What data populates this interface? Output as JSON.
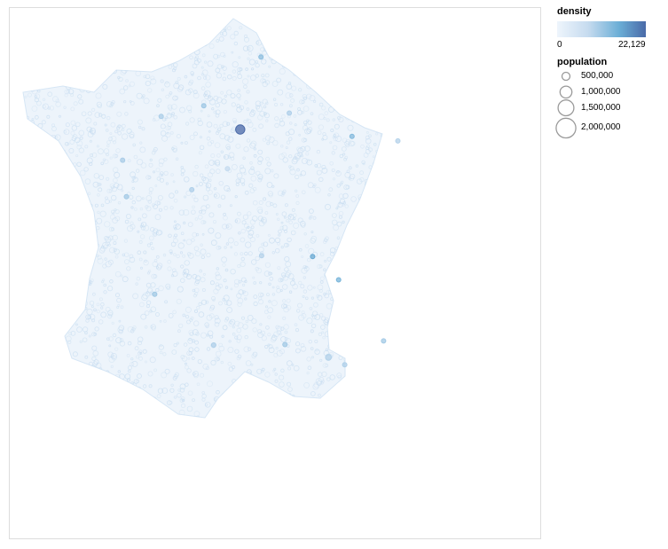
{
  "chart_data": {
    "type": "scatter",
    "title": "",
    "xlabel": "",
    "ylabel": "",
    "grid": false,
    "legend_placement": "right",
    "density_legend": {
      "title": "density",
      "min": 0,
      "max": 22129,
      "min_label": "0",
      "max_label": "22,129",
      "color_scale": [
        "#eef5fc",
        "#c6dbef",
        "#6baed6",
        "#4a6aa8"
      ]
    },
    "population_legend": {
      "title": "population",
      "entries": [
        {
          "value": 500000,
          "label": "500,000"
        },
        {
          "value": 1000000,
          "label": "1,000,000"
        },
        {
          "value": 1500000,
          "label": "1,500,000"
        },
        {
          "value": 2000000,
          "label": "2,000,000"
        }
      ]
    },
    "highlighted_points": [
      {
        "lon": 2.35,
        "lat": 48.86,
        "density": 22129,
        "population": 2200000
      },
      {
        "lon": 4.83,
        "lat": 45.76,
        "density": 10500,
        "population": 500000
      },
      {
        "lon": 5.37,
        "lat": 43.3,
        "density": 3600,
        "population": 860000
      },
      {
        "lon": 1.44,
        "lat": 43.6,
        "density": 3900,
        "population": 470000
      },
      {
        "lon": -0.58,
        "lat": 44.84,
        "density": 5000,
        "population": 250000
      },
      {
        "lon": 3.06,
        "lat": 50.63,
        "density": 6600,
        "population": 230000
      },
      {
        "lon": 7.26,
        "lat": 43.7,
        "density": 4800,
        "population": 340000
      },
      {
        "lon": 7.75,
        "lat": 48.58,
        "density": 3500,
        "population": 280000
      },
      {
        "lon": -1.55,
        "lat": 47.22,
        "density": 4700,
        "population": 300000
      },
      {
        "lon": -1.68,
        "lat": 48.11,
        "density": 4300,
        "population": 215000
      },
      {
        "lon": 3.88,
        "lat": 43.61,
        "density": 4800,
        "population": 285000
      },
      {
        "lon": 1.1,
        "lat": 49.44,
        "density": 5200,
        "population": 110000
      },
      {
        "lon": 5.72,
        "lat": 45.19,
        "density": 8600,
        "population": 160000
      },
      {
        "lon": 3.08,
        "lat": 45.78,
        "density": 3500,
        "population": 145000
      },
      {
        "lon": 4.03,
        "lat": 49.26,
        "density": 3900,
        "population": 185000
      },
      {
        "lon": 6.18,
        "lat": 48.69,
        "density": 7400,
        "population": 105000
      },
      {
        "lon": 5.93,
        "lat": 43.12,
        "density": 3800,
        "population": 170000
      },
      {
        "lon": 0.69,
        "lat": 47.39,
        "density": 3900,
        "population": 135000
      },
      {
        "lon": 1.91,
        "lat": 47.9,
        "density": 2500,
        "population": 115000
      },
      {
        "lon": -0.36,
        "lat": 49.18,
        "density": 4100,
        "population": 105000
      }
    ]
  }
}
